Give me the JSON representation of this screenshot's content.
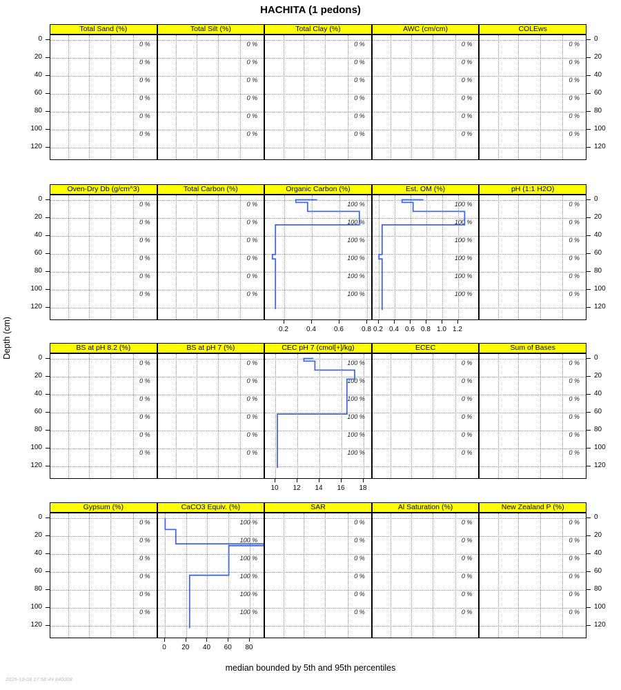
{
  "title": "HACHITA (1 pedons)",
  "caption": "median bounded by 5th and 95th percentiles",
  "timestamp": "2025-10-08 17:58:49.840008",
  "depth_axis": {
    "label": "Depth (cm)",
    "ticks": [
      0,
      20,
      40,
      60,
      80,
      100,
      120
    ],
    "ylim": [
      -5,
      135
    ]
  },
  "labels": {
    "empty_panel": "0 %",
    "data_panel": "100 %"
  },
  "colors": {
    "strip_bg": "#ffff00",
    "strip_border": "#000000",
    "panel_border": "#000000",
    "profile_line": "#4169e1",
    "grid": "#8f8f8f",
    "timestamp": "#bdbdbd"
  },
  "chart_data": {
    "type": "line",
    "description": "lattice of soil depth profiles, median bounded by 5th and 95th percentiles, depth 0-120 cm",
    "percent_label_depths": [
      0,
      20,
      40,
      60,
      80,
      100
    ],
    "rows": [
      {
        "panels": [
          {
            "title": "Total Sand (%)",
            "percent": "0 %"
          },
          {
            "title": "Total Silt (%)",
            "percent": "0 %"
          },
          {
            "title": "Total Clay (%)",
            "percent": "0 %"
          },
          {
            "title": "AWC (cm/cm)",
            "percent": "0 %"
          },
          {
            "title": "COLEws",
            "percent": "0 %"
          }
        ]
      },
      {
        "panels": [
          {
            "title": "Oven-Dry Db (g/cm^3)",
            "percent": "0 %"
          },
          {
            "title": "Total Carbon (%)",
            "percent": "0 %"
          },
          {
            "title": "Organic Carbon (%)",
            "percent": "100 %",
            "x_ticks": [
              0.2,
              0.4,
              0.6,
              0.8
            ],
            "xlim": [
              0.061,
              0.839
            ],
            "profile": [
              [
                0.44,
                0
              ],
              [
                0.285,
                0
              ],
              [
                0.285,
                3
              ],
              [
                0.37,
                3
              ],
              [
                0.37,
                13
              ],
              [
                0.745,
                13
              ],
              [
                0.745,
                28
              ],
              [
                0.137,
                28
              ],
              [
                0.137,
                61
              ],
              [
                0.115,
                61
              ],
              [
                0.115,
                66
              ],
              [
                0.137,
                66
              ],
              [
                0.137,
                122
              ]
            ]
          },
          {
            "title": "Est. OM (%)",
            "percent": "100 %",
            "x_ticks": [
              0.2,
              0.4,
              0.6,
              0.8,
              1.0,
              1.2
            ],
            "xlim": [
              0.12,
              1.473
            ],
            "profile": [
              [
                0.76,
                0
              ],
              [
                0.49,
                0
              ],
              [
                0.49,
                3
              ],
              [
                0.63,
                3
              ],
              [
                0.63,
                13
              ],
              [
                1.28,
                13
              ],
              [
                1.28,
                28
              ],
              [
                0.24,
                28
              ],
              [
                0.24,
                61
              ],
              [
                0.2,
                61
              ],
              [
                0.2,
                66
              ],
              [
                0.24,
                66
              ],
              [
                0.24,
                123
              ]
            ]
          },
          {
            "title": "pH (1:1 H2O)",
            "percent": "0 %"
          }
        ]
      },
      {
        "panels": [
          {
            "title": "BS at pH 8.2 (%)",
            "percent": "0 %"
          },
          {
            "title": "BS at pH 7 (%)",
            "percent": "0 %"
          },
          {
            "title": "CEC pH 7 (cmol[+]/kg)",
            "percent": "100 %",
            "x_ticks": [
              10,
              12,
              14,
              16,
              18
            ],
            "xlim": [
              9.075,
              18.8
            ],
            "profile": [
              [
                13.45,
                0
              ],
              [
                12.6,
                0
              ],
              [
                12.6,
                3
              ],
              [
                13.6,
                3
              ],
              [
                13.6,
                13
              ],
              [
                17.2,
                13
              ],
              [
                17.2,
                23
              ],
              [
                16.5,
                23
              ],
              [
                16.5,
                62
              ],
              [
                10.2,
                62
              ],
              [
                10.2,
                122
              ]
            ]
          },
          {
            "title": "ECEC",
            "percent": "0 %"
          },
          {
            "title": "Sum of Bases",
            "percent": "0 %"
          }
        ]
      },
      {
        "panels": [
          {
            "title": "Gypsum (%)",
            "percent": "0 %"
          },
          {
            "title": "CaCO3 Equiv. (%)",
            "percent": "100 %",
            "x_ticks": [
              0,
              20,
              40,
              60,
              80
            ],
            "xlim": [
              -6.8,
              94.5
            ],
            "profile": [
              [
                0,
                0
              ],
              [
                0,
                13
              ],
              [
                10,
                13
              ],
              [
                10,
                29
              ],
              [
                93,
                29
              ],
              [
                93,
                31
              ],
              [
                60,
                31
              ],
              [
                60,
                64
              ],
              [
                23,
                64
              ],
              [
                23,
                123
              ]
            ]
          },
          {
            "title": "SAR",
            "percent": "0 %"
          },
          {
            "title": "Al Saturation (%)",
            "percent": "0 %"
          },
          {
            "title": "New Zealand P (%)",
            "percent": "0 %"
          }
        ]
      }
    ]
  }
}
